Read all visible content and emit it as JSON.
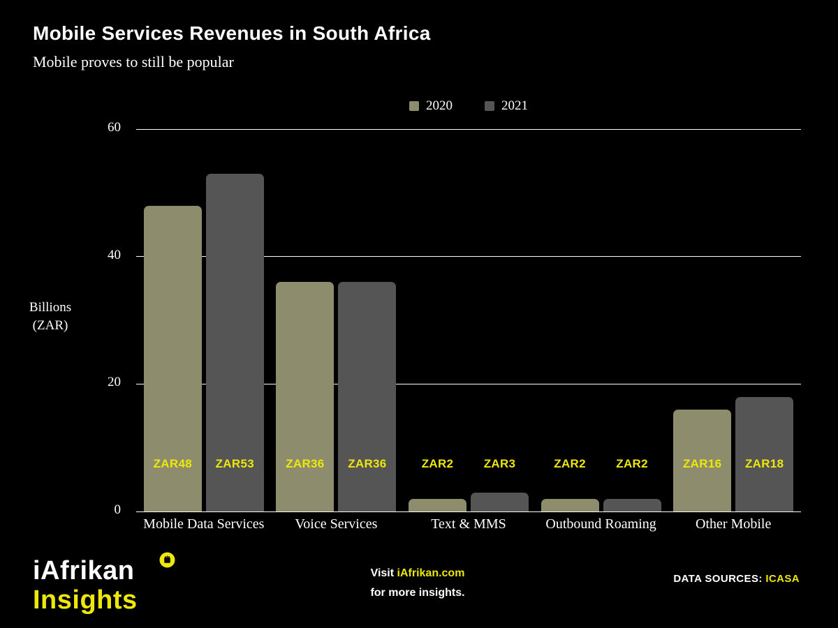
{
  "header": {
    "title": "Mobile Services Revenues in South Africa",
    "subtitle": "Mobile proves to still be popular"
  },
  "chart_data": {
    "type": "bar",
    "title": "Mobile Services Revenues in South Africa",
    "categories": [
      "Mobile Data Services",
      "Voice Services",
      "Text & MMS",
      "Outbound Roaming",
      "Other Mobile"
    ],
    "series": [
      {
        "name": "2020",
        "color": "#8D8D6E",
        "values": [
          48,
          36,
          2,
          2,
          16
        ],
        "bar_labels": [
          "ZAR48",
          "ZAR36",
          "ZAR2",
          "ZAR2",
          "ZAR16"
        ]
      },
      {
        "name": "2021",
        "color": "#555555",
        "values": [
          53,
          36,
          3,
          2,
          18
        ],
        "bar_labels": [
          "ZAR53",
          "ZAR36",
          "ZAR3",
          "ZAR2",
          "ZAR18"
        ]
      }
    ],
    "ylabel_lines": [
      "Billions",
      "(ZAR)"
    ],
    "yticks": [
      0,
      20,
      40,
      60
    ],
    "ylim": [
      0,
      60
    ],
    "grid": true,
    "legend_position": "top-center"
  },
  "footer": {
    "brand_line1": "iAfrikan",
    "brand_line2": "Insights",
    "fist_icon_glyph": "✊",
    "visit_prefix": "Visit ",
    "visit_link": "iAfrikan.com",
    "visit_line2": "for more insights.",
    "sources_label": "DATA SOURCES: ",
    "sources_value": "ICASA"
  },
  "colors": {
    "background": "#000000",
    "text": "#FFFFFF",
    "accent_yellow": "#EDE70A",
    "gridline": "#FFFFFF",
    "bar_2020": "#8D8D6E",
    "bar_2021": "#555555"
  }
}
